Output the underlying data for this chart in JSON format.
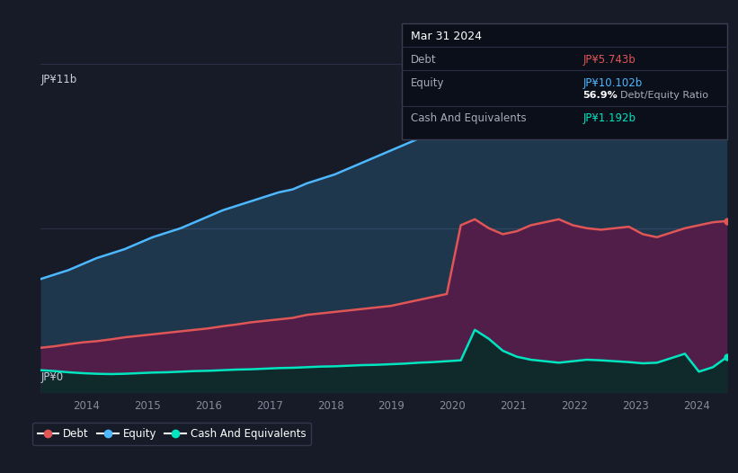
{
  "background_color": "#161b27",
  "plot_bg_color": "#161b27",
  "title_box": {
    "date": "Mar 31 2024",
    "debt_label": "Debt",
    "debt_value": "JP¥5.743b",
    "debt_color": "#e05555",
    "equity_label": "Equity",
    "equity_value": "JP¥10.102b",
    "equity_color": "#4db8ff",
    "ratio_bold": "56.9%",
    "ratio_text": " Debt/Equity Ratio",
    "cash_label": "Cash And Equivalents",
    "cash_value": "JP¥1.192b",
    "cash_color": "#00e5c0"
  },
  "ylabel_top": "JP¥11b",
  "ylabel_bottom": "JP¥0",
  "x_ticks": [
    2014,
    2015,
    2016,
    2017,
    2018,
    2019,
    2020,
    2021,
    2022,
    2023,
    2024
  ],
  "ylim": [
    0,
    11
  ],
  "colors": {
    "equity": "#4db8ff",
    "debt": "#e05555",
    "cash": "#00e5c0"
  },
  "equity": [
    3.8,
    3.95,
    4.1,
    4.3,
    4.5,
    4.65,
    4.8,
    5.0,
    5.2,
    5.35,
    5.5,
    5.7,
    5.9,
    6.1,
    6.25,
    6.4,
    6.55,
    6.7,
    6.8,
    7.0,
    7.15,
    7.3,
    7.5,
    7.7,
    7.9,
    8.1,
    8.3,
    8.5,
    8.7,
    8.9,
    9.1,
    9.35,
    9.6,
    9.8,
    10.0,
    10.2,
    10.4,
    10.5,
    10.6,
    10.55,
    10.5,
    10.45,
    10.4,
    10.35,
    10.3,
    10.25,
    10.2,
    10.1,
    10.15,
    10.2
  ],
  "debt": [
    1.5,
    1.55,
    1.62,
    1.68,
    1.72,
    1.78,
    1.85,
    1.9,
    1.95,
    2.0,
    2.05,
    2.1,
    2.15,
    2.22,
    2.28,
    2.35,
    2.4,
    2.45,
    2.5,
    2.6,
    2.65,
    2.7,
    2.75,
    2.8,
    2.85,
    2.9,
    3.0,
    3.1,
    3.2,
    3.3,
    5.6,
    5.8,
    5.5,
    5.3,
    5.4,
    5.6,
    5.7,
    5.8,
    5.6,
    5.5,
    5.45,
    5.5,
    5.55,
    5.3,
    5.2,
    5.35,
    5.5,
    5.6,
    5.7,
    5.74
  ],
  "cash": [
    0.75,
    0.72,
    0.68,
    0.65,
    0.63,
    0.62,
    0.63,
    0.65,
    0.67,
    0.68,
    0.7,
    0.72,
    0.73,
    0.75,
    0.77,
    0.78,
    0.8,
    0.82,
    0.83,
    0.85,
    0.87,
    0.88,
    0.9,
    0.92,
    0.93,
    0.95,
    0.97,
    1.0,
    1.02,
    1.05,
    1.08,
    2.1,
    1.8,
    1.4,
    1.2,
    1.1,
    1.05,
    1.0,
    1.05,
    1.1,
    1.08,
    1.05,
    1.02,
    0.98,
    1.0,
    1.15,
    1.3,
    0.7,
    0.85,
    1.19
  ],
  "legend": [
    {
      "label": "Debt",
      "color": "#e05555"
    },
    {
      "label": "Equity",
      "color": "#4db8ff"
    },
    {
      "label": "Cash And Equivalents",
      "color": "#00e5c0"
    }
  ]
}
